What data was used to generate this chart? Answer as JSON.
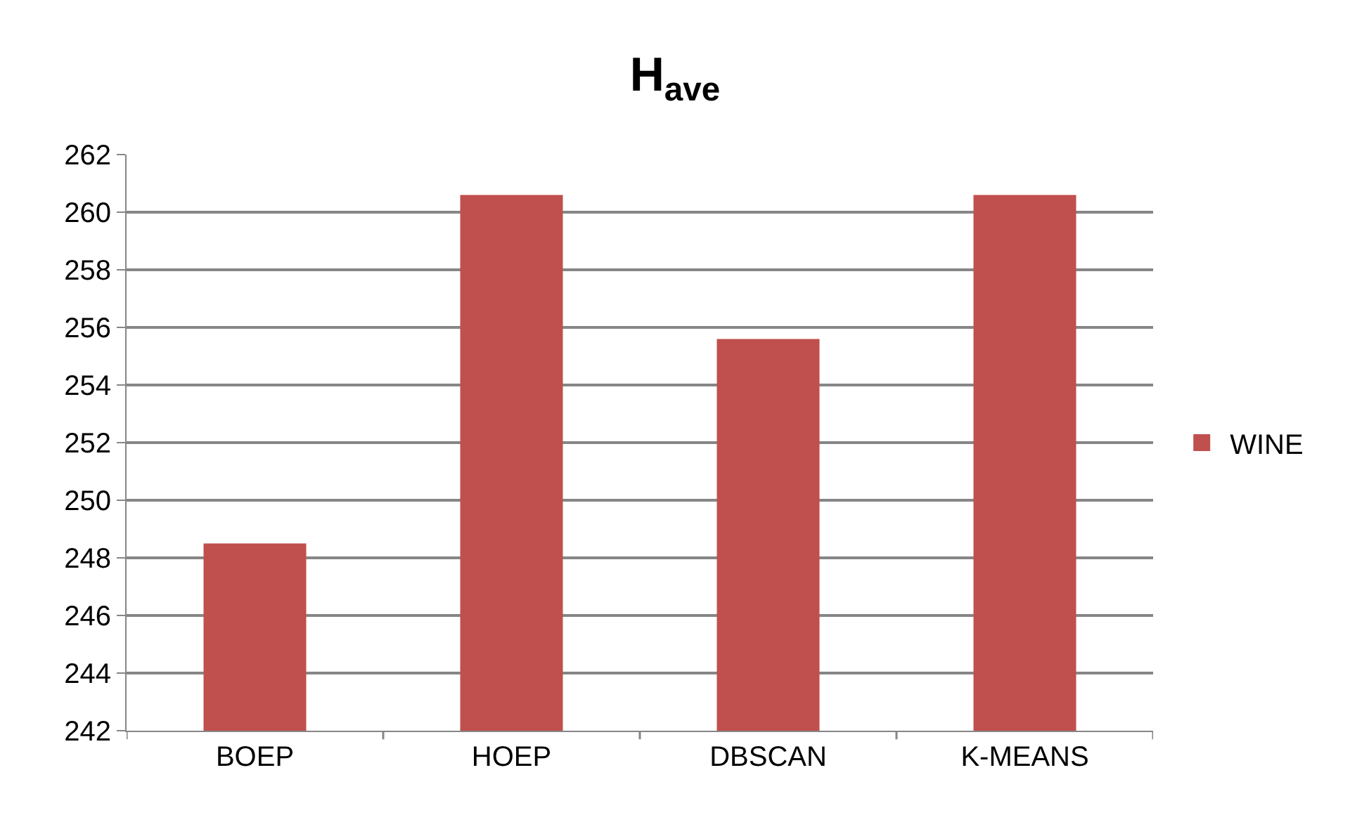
{
  "chart_data": {
    "type": "bar",
    "title": "H$_{ave}$",
    "categories": [
      "BOEP",
      "HOEP",
      "DBSCAN",
      "K-MEANS"
    ],
    "series": [
      {
        "name": "WINE",
        "color": "#c0504d",
        "values": [
          248.5,
          260.6,
          255.6,
          260.6
        ]
      }
    ],
    "ylim": [
      242,
      262
    ],
    "yticks": [
      242,
      244,
      246,
      248,
      250,
      252,
      254,
      256,
      258,
      260,
      262
    ],
    "grid": "y",
    "legend": "right"
  }
}
